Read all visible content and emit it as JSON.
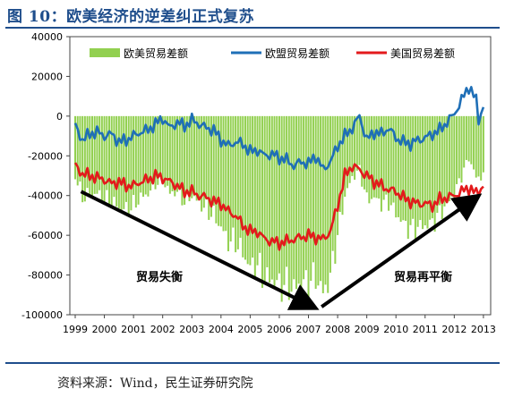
{
  "figure": {
    "title": "图 10：欧美经济的逆差纠正式复苏",
    "source": "资料来源：Wind，民生证券研究院"
  },
  "chart_data": {
    "type": "bar+line",
    "title": "",
    "xlabel": "",
    "ylabel": "",
    "ylim": [
      -100000,
      40000
    ],
    "yticks": [
      40000,
      20000,
      0,
      -20000,
      -40000,
      -60000,
      -80000,
      -100000
    ],
    "ytick_labels": [
      "40000",
      "20000",
      "0",
      "-20000",
      "-40000",
      "-60000",
      "-80000",
      "-100000"
    ],
    "xticks": [
      "1999",
      "2000",
      "2001",
      "2002",
      "2003",
      "2004",
      "2005",
      "2006",
      "2007",
      "2008",
      "2009",
      "2010",
      "2011",
      "2012",
      "2013"
    ],
    "x_range": [
      1999.0,
      2013.0
    ],
    "legend": [
      "欧美贸易差额",
      "欧盟贸易差额",
      "美国贸易差额"
    ],
    "legend_position": "top",
    "colors": {
      "bars": "#92d050",
      "eu": "#1f6fb7",
      "us": "#e31a1c",
      "arrow": "#000000"
    },
    "series": [
      {
        "name": "欧盟贸易差额",
        "type": "line",
        "points": [
          [
            1999.0,
            -5000
          ],
          [
            1999.25,
            -12000
          ],
          [
            1999.5,
            -9000
          ],
          [
            1999.75,
            -8000
          ],
          [
            2000.0,
            -10000
          ],
          [
            2000.25,
            -9000
          ],
          [
            2000.5,
            -13000
          ],
          [
            2000.75,
            -12000
          ],
          [
            2001.0,
            -10000
          ],
          [
            2001.25,
            -8000
          ],
          [
            2001.5,
            -7000
          ],
          [
            2001.75,
            -4000
          ],
          [
            2002.0,
            -1000
          ],
          [
            2002.25,
            -6000
          ],
          [
            2002.5,
            -3000
          ],
          [
            2002.75,
            -5000
          ],
          [
            2003.0,
            -2000
          ],
          [
            2003.25,
            -4000
          ],
          [
            2003.5,
            -6000
          ],
          [
            2003.75,
            -7000
          ],
          [
            2004.0,
            -12000
          ],
          [
            2004.25,
            -15000
          ],
          [
            2004.5,
            -13000
          ],
          [
            2004.75,
            -14000
          ],
          [
            2005.0,
            -18000
          ],
          [
            2005.25,
            -17000
          ],
          [
            2005.5,
            -20000
          ],
          [
            2005.75,
            -19000
          ],
          [
            2006.0,
            -21000
          ],
          [
            2006.25,
            -22000
          ],
          [
            2006.5,
            -25000
          ],
          [
            2006.75,
            -23000
          ],
          [
            2007.0,
            -24000
          ],
          [
            2007.25,
            -20000
          ],
          [
            2007.5,
            -27000
          ],
          [
            2007.75,
            -23000
          ],
          [
            2008.0,
            -15000
          ],
          [
            2008.25,
            -10000
          ],
          [
            2008.5,
            -6000
          ],
          [
            2008.75,
            0
          ],
          [
            2009.0,
            -12000
          ],
          [
            2009.25,
            -8000
          ],
          [
            2009.5,
            -9000
          ],
          [
            2009.75,
            -6000
          ],
          [
            2010.0,
            -11000
          ],
          [
            2010.25,
            -13000
          ],
          [
            2010.5,
            -14000
          ],
          [
            2010.75,
            -12000
          ],
          [
            2011.0,
            -11000
          ],
          [
            2011.25,
            -9000
          ],
          [
            2011.5,
            -7000
          ],
          [
            2011.75,
            -3000
          ],
          [
            2012.0,
            1000
          ],
          [
            2012.25,
            8000
          ],
          [
            2012.5,
            15000
          ],
          [
            2012.75,
            8000
          ],
          [
            2012.83,
            -2000
          ],
          [
            2013.0,
            5000
          ]
        ]
      },
      {
        "name": "美国贸易差额",
        "type": "line",
        "points": [
          [
            1999.0,
            -25000
          ],
          [
            1999.25,
            -29000
          ],
          [
            1999.5,
            -30000
          ],
          [
            1999.75,
            -31000
          ],
          [
            2000.0,
            -32000
          ],
          [
            2000.25,
            -34000
          ],
          [
            2000.5,
            -33000
          ],
          [
            2000.75,
            -35000
          ],
          [
            2001.0,
            -35000
          ],
          [
            2001.25,
            -33000
          ],
          [
            2001.5,
            -32000
          ],
          [
            2001.75,
            -30000
          ],
          [
            2002.0,
            -31000
          ],
          [
            2002.25,
            -33000
          ],
          [
            2002.5,
            -35000
          ],
          [
            2002.75,
            -38000
          ],
          [
            2003.0,
            -38000
          ],
          [
            2003.25,
            -40000
          ],
          [
            2003.5,
            -41000
          ],
          [
            2003.75,
            -43000
          ],
          [
            2004.0,
            -44000
          ],
          [
            2004.25,
            -48000
          ],
          [
            2004.5,
            -50000
          ],
          [
            2004.75,
            -55000
          ],
          [
            2005.0,
            -58000
          ],
          [
            2005.25,
            -58000
          ],
          [
            2005.5,
            -62000
          ],
          [
            2005.75,
            -63000
          ],
          [
            2006.0,
            -64000
          ],
          [
            2006.25,
            -63000
          ],
          [
            2006.5,
            -62000
          ],
          [
            2006.75,
            -61000
          ],
          [
            2007.0,
            -60000
          ],
          [
            2007.25,
            -61000
          ],
          [
            2007.5,
            -62000
          ],
          [
            2007.75,
            -58000
          ],
          [
            2008.0,
            -45000
          ],
          [
            2008.25,
            -30000
          ],
          [
            2008.5,
            -25000
          ],
          [
            2008.75,
            -27000
          ],
          [
            2009.0,
            -30000
          ],
          [
            2009.25,
            -33000
          ],
          [
            2009.5,
            -35000
          ],
          [
            2009.75,
            -37000
          ],
          [
            2010.0,
            -38000
          ],
          [
            2010.25,
            -41000
          ],
          [
            2010.5,
            -43000
          ],
          [
            2010.75,
            -44000
          ],
          [
            2011.0,
            -44000
          ],
          [
            2011.25,
            -45000
          ],
          [
            2011.5,
            -42000
          ],
          [
            2011.75,
            -41000
          ],
          [
            2012.0,
            -40000
          ],
          [
            2012.25,
            -38000
          ],
          [
            2012.5,
            -36000
          ],
          [
            2012.75,
            -39000
          ],
          [
            2013.0,
            -35000
          ]
        ]
      },
      {
        "name": "欧美贸易差额",
        "type": "bar",
        "points": [
          [
            1999.0,
            -30000
          ],
          [
            1999.25,
            -41000
          ],
          [
            1999.5,
            -39000
          ],
          [
            1999.75,
            -39000
          ],
          [
            2000.0,
            -42000
          ],
          [
            2000.25,
            -43000
          ],
          [
            2000.5,
            -46000
          ],
          [
            2000.75,
            -47000
          ],
          [
            2001.0,
            -45000
          ],
          [
            2001.25,
            -41000
          ],
          [
            2001.5,
            -39000
          ],
          [
            2001.75,
            -34000
          ],
          [
            2002.0,
            -32000
          ],
          [
            2002.25,
            -39000
          ],
          [
            2002.5,
            -38000
          ],
          [
            2002.75,
            -43000
          ],
          [
            2003.0,
            -40000
          ],
          [
            2003.25,
            -44000
          ],
          [
            2003.5,
            -47000
          ],
          [
            2003.75,
            -50000
          ],
          [
            2004.0,
            -56000
          ],
          [
            2004.25,
            -63000
          ],
          [
            2004.5,
            -63000
          ],
          [
            2004.75,
            -69000
          ],
          [
            2005.0,
            -76000
          ],
          [
            2005.25,
            -75000
          ],
          [
            2005.5,
            -82000
          ],
          [
            2005.75,
            -82000
          ],
          [
            2006.0,
            -85000
          ],
          [
            2006.25,
            -85000
          ],
          [
            2006.5,
            -87000
          ],
          [
            2006.75,
            -84000
          ],
          [
            2007.0,
            -84000
          ],
          [
            2007.25,
            -81000
          ],
          [
            2007.5,
            -89000
          ],
          [
            2007.75,
            -81000
          ],
          [
            2008.0,
            -60000
          ],
          [
            2008.25,
            -40000
          ],
          [
            2008.5,
            -31000
          ],
          [
            2008.75,
            -27000
          ],
          [
            2009.0,
            -42000
          ],
          [
            2009.25,
            -41000
          ],
          [
            2009.5,
            -44000
          ],
          [
            2009.75,
            -43000
          ],
          [
            2010.0,
            -49000
          ],
          [
            2010.25,
            -54000
          ],
          [
            2010.5,
            -57000
          ],
          [
            2010.75,
            -56000
          ],
          [
            2011.0,
            -55000
          ],
          [
            2011.25,
            -54000
          ],
          [
            2011.5,
            -49000
          ],
          [
            2011.75,
            -44000
          ],
          [
            2012.0,
            -39000
          ],
          [
            2012.25,
            -30000
          ],
          [
            2012.5,
            -21000
          ],
          [
            2012.75,
            -31000
          ],
          [
            2013.0,
            -30000
          ]
        ]
      }
    ],
    "annotations": [
      {
        "text": "贸易失衡",
        "arrow_from": [
          1999.2,
          -38000
        ],
        "arrow_to": [
          2007.15,
          -96000
        ]
      },
      {
        "text": "贸易再平衡",
        "arrow_from": [
          2007.45,
          -96000
        ],
        "arrow_to": [
          2012.75,
          -41000
        ]
      }
    ]
  }
}
